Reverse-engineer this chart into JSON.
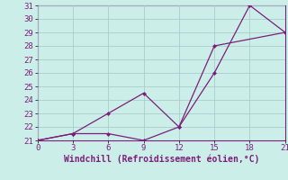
{
  "line1_x": [
    0,
    3,
    6,
    9,
    12,
    15,
    18,
    21
  ],
  "line1_y": [
    21,
    21.5,
    23,
    24.5,
    22,
    26,
    31,
    29
  ],
  "line2_x": [
    0,
    3,
    6,
    9,
    12,
    15,
    21
  ],
  "line2_y": [
    21,
    21.5,
    21.5,
    21,
    22,
    28,
    29
  ],
  "line_color": "#7B1F7B",
  "bg_color": "#cceee8",
  "grid_color": "#aacccc",
  "xlabel": "Windchill (Refroidissement éolien,°C)",
  "xlim": [
    0,
    21
  ],
  "ylim": [
    21,
    31
  ],
  "xticks": [
    0,
    3,
    6,
    9,
    12,
    15,
    18,
    21
  ],
  "yticks": [
    21,
    22,
    23,
    24,
    25,
    26,
    27,
    28,
    29,
    30,
    31
  ],
  "xlabel_fontsize": 7,
  "tick_fontsize": 6.5,
  "marker_size": 2.5,
  "linewidth": 0.9
}
